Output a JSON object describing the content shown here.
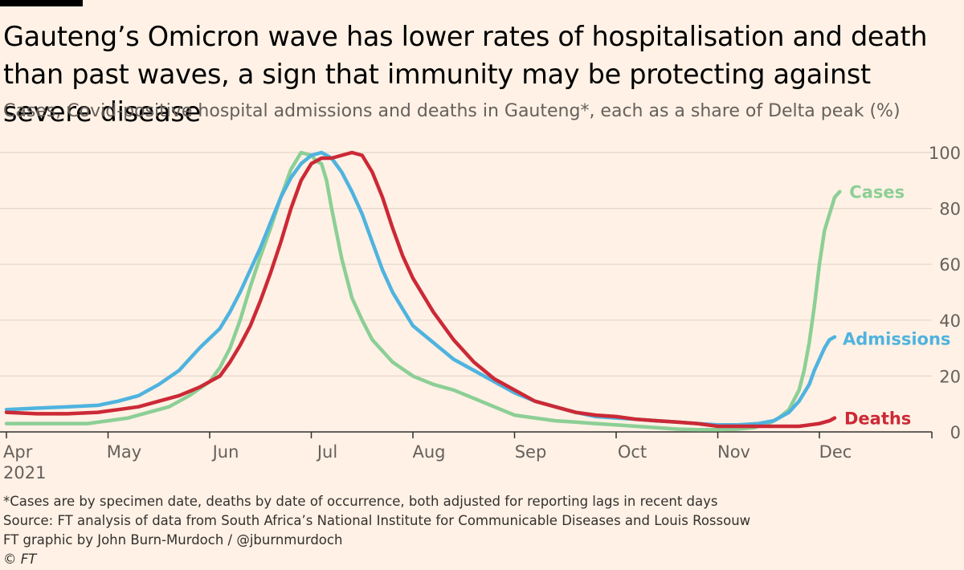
{
  "title": "Gauteng’s Omicron wave has lower rates of hospitalisation and death than past waves, a sign that immunity may be protecting against severe disease",
  "subtitle": "Cases, Covid-positive hospital admissions and deaths in Gauteng*, each as a share of Delta peak (%)",
  "footer": {
    "note": "*Cases are by specimen date, deaths by date of occurrence, both adjusted for reporting lags in recent days",
    "source": "Source: FT analysis of data from South Africa’s National Institute for Communicable Diseases and Louis Rossouw",
    "credit": "FT graphic by John Burn-Murdoch / @jburnmurdoch",
    "copyright": "© FT"
  },
  "chart_data": {
    "type": "line",
    "x_unit": "months from 1 Apr 2021",
    "x_ticks": [
      {
        "x": 0,
        "label": "Apr"
      },
      {
        "x": 1,
        "label": "May"
      },
      {
        "x": 2,
        "label": "Jun"
      },
      {
        "x": 3,
        "label": "Jul"
      },
      {
        "x": 4,
        "label": "Aug"
      },
      {
        "x": 5,
        "label": "Sep"
      },
      {
        "x": 6,
        "label": "Oct"
      },
      {
        "x": 7,
        "label": "Nov"
      },
      {
        "x": 8,
        "label": "Dec"
      }
    ],
    "x_year_label": "2021",
    "xlim": [
      0,
      9
    ],
    "ylim": [
      0,
      100
    ],
    "y_ticks": [
      0,
      20,
      40,
      60,
      80,
      100
    ],
    "grid": true,
    "legend": "direct labels at line ends",
    "series": [
      {
        "name": "Cases",
        "color": "#8ccf96",
        "points": [
          [
            0,
            3
          ],
          [
            0.5,
            3
          ],
          [
            0.8,
            3
          ],
          [
            1.0,
            4
          ],
          [
            1.2,
            5
          ],
          [
            1.4,
            7
          ],
          [
            1.6,
            9
          ],
          [
            1.8,
            13
          ],
          [
            2.0,
            18
          ],
          [
            2.1,
            23
          ],
          [
            2.2,
            30
          ],
          [
            2.3,
            40
          ],
          [
            2.4,
            52
          ],
          [
            2.5,
            63
          ],
          [
            2.6,
            73
          ],
          [
            2.7,
            84
          ],
          [
            2.8,
            94
          ],
          [
            2.9,
            100
          ],
          [
            3.0,
            99
          ],
          [
            3.05,
            97
          ],
          [
            3.1,
            96
          ],
          [
            3.15,
            90
          ],
          [
            3.2,
            80
          ],
          [
            3.3,
            62
          ],
          [
            3.4,
            48
          ],
          [
            3.5,
            40
          ],
          [
            3.6,
            33
          ],
          [
            3.7,
            29
          ],
          [
            3.8,
            25
          ],
          [
            4.0,
            20
          ],
          [
            4.2,
            17
          ],
          [
            4.4,
            15
          ],
          [
            4.6,
            12
          ],
          [
            4.8,
            9
          ],
          [
            5.0,
            6
          ],
          [
            5.2,
            5
          ],
          [
            5.4,
            4
          ],
          [
            5.6,
            3.5
          ],
          [
            5.8,
            3
          ],
          [
            6.0,
            2.5
          ],
          [
            6.2,
            2
          ],
          [
            6.4,
            1.5
          ],
          [
            6.6,
            1
          ],
          [
            6.8,
            0.8
          ],
          [
            7.0,
            0.8
          ],
          [
            7.2,
            1
          ],
          [
            7.35,
            1.5
          ],
          [
            7.5,
            3
          ],
          [
            7.6,
            5
          ],
          [
            7.7,
            8
          ],
          [
            7.8,
            15
          ],
          [
            7.85,
            22
          ],
          [
            7.9,
            32
          ],
          [
            7.95,
            45
          ],
          [
            8.0,
            60
          ],
          [
            8.05,
            72
          ],
          [
            8.1,
            78
          ],
          [
            8.15,
            84
          ],
          [
            8.2,
            86
          ]
        ]
      },
      {
        "name": "Admissions",
        "color": "#4fb3df",
        "points": [
          [
            0,
            8
          ],
          [
            0.3,
            8.5
          ],
          [
            0.6,
            9
          ],
          [
            0.9,
            9.5
          ],
          [
            1.1,
            11
          ],
          [
            1.3,
            13
          ],
          [
            1.5,
            17
          ],
          [
            1.7,
            22
          ],
          [
            1.9,
            30
          ],
          [
            2.1,
            37
          ],
          [
            2.2,
            43
          ],
          [
            2.3,
            50
          ],
          [
            2.4,
            58
          ],
          [
            2.5,
            66
          ],
          [
            2.6,
            75
          ],
          [
            2.7,
            84
          ],
          [
            2.8,
            91
          ],
          [
            2.9,
            96
          ],
          [
            3.0,
            99
          ],
          [
            3.1,
            100
          ],
          [
            3.2,
            98
          ],
          [
            3.3,
            93
          ],
          [
            3.4,
            86
          ],
          [
            3.5,
            78
          ],
          [
            3.6,
            68
          ],
          [
            3.7,
            58
          ],
          [
            3.8,
            50
          ],
          [
            3.9,
            44
          ],
          [
            4.0,
            38
          ],
          [
            4.2,
            32
          ],
          [
            4.4,
            26
          ],
          [
            4.6,
            22
          ],
          [
            4.8,
            18
          ],
          [
            5.0,
            14
          ],
          [
            5.2,
            11
          ],
          [
            5.4,
            9
          ],
          [
            5.6,
            7
          ],
          [
            5.8,
            5.5
          ],
          [
            6.0,
            5
          ],
          [
            6.2,
            4.5
          ],
          [
            6.4,
            4
          ],
          [
            6.6,
            3.5
          ],
          [
            6.8,
            3
          ],
          [
            7.0,
            2.5
          ],
          [
            7.2,
            2.5
          ],
          [
            7.4,
            3
          ],
          [
            7.55,
            4
          ],
          [
            7.7,
            7
          ],
          [
            7.8,
            11
          ],
          [
            7.9,
            17
          ],
          [
            7.95,
            22
          ],
          [
            8.0,
            26
          ],
          [
            8.05,
            30
          ],
          [
            8.1,
            33
          ],
          [
            8.15,
            34
          ]
        ]
      },
      {
        "name": "Deaths",
        "color": "#cc2936",
        "points": [
          [
            0,
            7
          ],
          [
            0.3,
            6.5
          ],
          [
            0.6,
            6.5
          ],
          [
            0.9,
            7
          ],
          [
            1.1,
            8
          ],
          [
            1.3,
            9
          ],
          [
            1.5,
            11
          ],
          [
            1.7,
            13
          ],
          [
            1.9,
            16
          ],
          [
            2.1,
            20
          ],
          [
            2.2,
            25
          ],
          [
            2.3,
            31
          ],
          [
            2.4,
            38
          ],
          [
            2.5,
            47
          ],
          [
            2.6,
            57
          ],
          [
            2.7,
            68
          ],
          [
            2.8,
            80
          ],
          [
            2.9,
            90
          ],
          [
            3.0,
            96
          ],
          [
            3.1,
            98
          ],
          [
            3.2,
            98
          ],
          [
            3.3,
            99
          ],
          [
            3.4,
            100
          ],
          [
            3.5,
            99
          ],
          [
            3.6,
            93
          ],
          [
            3.7,
            84
          ],
          [
            3.8,
            73
          ],
          [
            3.9,
            63
          ],
          [
            4.0,
            55
          ],
          [
            4.2,
            43
          ],
          [
            4.4,
            33
          ],
          [
            4.6,
            25
          ],
          [
            4.8,
            19
          ],
          [
            5.0,
            15
          ],
          [
            5.2,
            11
          ],
          [
            5.4,
            9
          ],
          [
            5.6,
            7
          ],
          [
            5.8,
            6
          ],
          [
            6.0,
            5.5
          ],
          [
            6.2,
            4.5
          ],
          [
            6.4,
            4
          ],
          [
            6.6,
            3.5
          ],
          [
            6.8,
            3
          ],
          [
            7.0,
            2
          ],
          [
            7.2,
            2
          ],
          [
            7.4,
            2
          ],
          [
            7.6,
            2
          ],
          [
            7.8,
            2
          ],
          [
            7.9,
            2.5
          ],
          [
            8.0,
            3
          ],
          [
            8.1,
            4
          ],
          [
            8.15,
            5
          ]
        ]
      }
    ]
  }
}
